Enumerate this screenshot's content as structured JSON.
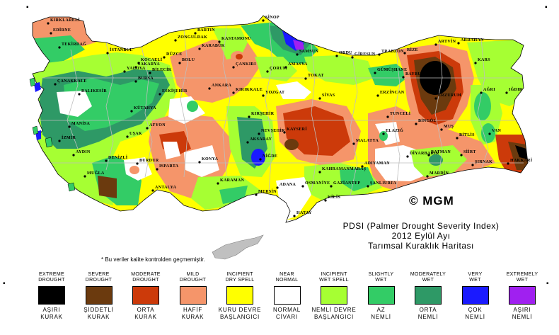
{
  "map": {
    "title_line1": "PDSI (Palmer Drought Severity Index)",
    "title_line2": "2012 Eylül Ayı",
    "title_line3": "Tarımsal Kuraklık Haritası",
    "copyright": "© MGM",
    "note": "* Bu veriler kalite kontrolden geçmemiştir.",
    "colors": {
      "extreme_drought": "#000000",
      "severe_drought": "#6b3a0e",
      "moderate_drought": "#cc3a0a",
      "mild_drought": "#f5956a",
      "incipient_dry_spell": "#ffff00",
      "near_normal": "#ffffff",
      "incipient_wet_spell": "#a6ff33",
      "slightly_wet": "#33cc66",
      "moderately_wet": "#2e9966",
      "very_wet": "#1a1aff",
      "extremely_wet": "#a020f0",
      "border": "#bebebe",
      "sea": "#ffffff",
      "cyprus": "#c0c0c0"
    },
    "cities": [
      {
        "name": "KIRKLARELİ"
      },
      {
        "name": "EDİRNE"
      },
      {
        "name": "TEKİRDAĞ"
      },
      {
        "name": "İSTANBUL"
      },
      {
        "name": "KOCAELİ"
      },
      {
        "name": "SAKARYA"
      },
      {
        "name": "DÜZCE"
      },
      {
        "name": "ZONGULDAK"
      },
      {
        "name": "BARTIN"
      },
      {
        "name": "KASTAMONU"
      },
      {
        "name": "SİNOP"
      },
      {
        "name": "SAMSUN"
      },
      {
        "name": "ORDU"
      },
      {
        "name": "GİRESUN"
      },
      {
        "name": "TRABZON"
      },
      {
        "name": "RİZE"
      },
      {
        "name": "ARTVİN"
      },
      {
        "name": "ARDAHAN"
      },
      {
        "name": "KARS"
      },
      {
        "name": "IĞDIR"
      },
      {
        "name": "AĞRI"
      },
      {
        "name": "ERZURUM"
      },
      {
        "name": "BAYBURT"
      },
      {
        "name": "GÜMÜŞHANE"
      },
      {
        "name": "ERZİNCAN"
      },
      {
        "name": "TUNCELİ"
      },
      {
        "name": "BİNGÖL"
      },
      {
        "name": "MUŞ"
      },
      {
        "name": "VAN"
      },
      {
        "name": "BİTLİS"
      },
      {
        "name": "SİİRT"
      },
      {
        "name": "HAKKARİ"
      },
      {
        "name": "ŞIRNAK"
      },
      {
        "name": "MARDİN"
      },
      {
        "name": "BATMAN"
      },
      {
        "name": "DİYARBAKIR"
      },
      {
        "name": "ELAZIĞ"
      },
      {
        "name": "MALATYA"
      },
      {
        "name": "ADIYAMAN"
      },
      {
        "name": "ŞANLIURFA"
      },
      {
        "name": "GAZİANTEP"
      },
      {
        "name": "KİLİS"
      },
      {
        "name": "HATAY"
      },
      {
        "name": "OSMANİYE"
      },
      {
        "name": "ADANA"
      },
      {
        "name": "MERSİN"
      },
      {
        "name": "KAHRAMANMARAŞ"
      },
      {
        "name": "KAYSERİ"
      },
      {
        "name": "SİVAS"
      },
      {
        "name": "TOKAT"
      },
      {
        "name": "AMASYA"
      },
      {
        "name": "ÇORUM"
      },
      {
        "name": "YOZGAT"
      },
      {
        "name": "KIRIKKALE"
      },
      {
        "name": "ANKARA"
      },
      {
        "name": "ÇANKIRI"
      },
      {
        "name": "KARABÜK"
      },
      {
        "name": "BOLU"
      },
      {
        "name": "BİLECİK"
      },
      {
        "name": "BURSA"
      },
      {
        "name": "YALOVA"
      },
      {
        "name": "ÇANAKKALE"
      },
      {
        "name": "BALIKESİR"
      },
      {
        "name": "İZMİR"
      },
      {
        "name": "MANİSA"
      },
      {
        "name": "AYDIN"
      },
      {
        "name": "MUĞLA"
      },
      {
        "name": "DENİZLİ"
      },
      {
        "name": "UŞAK"
      },
      {
        "name": "KÜTAHYA"
      },
      {
        "name": "ESKİŞEHİR"
      },
      {
        "name": "AFYON"
      },
      {
        "name": "BURDUR"
      },
      {
        "name": "ISPARTA"
      },
      {
        "name": "ANTALYA"
      },
      {
        "name": "KONYA"
      },
      {
        "name": "KARAMAN"
      },
      {
        "name": "AKSARAY"
      },
      {
        "name": "NİĞDE"
      },
      {
        "name": "NEVŞEHİR"
      },
      {
        "name": "KIRŞEHİR"
      }
    ]
  },
  "legend": [
    {
      "en": "EXTREME\nDROUGHT",
      "tr": "AŞIRI\nKURAK",
      "color": "#000000"
    },
    {
      "en": "SEVERE\nDROUGHT",
      "tr": "ŞİDDETLİ\nKURAK",
      "color": "#6b3a0e"
    },
    {
      "en": "MODERATE\nDROUGHT",
      "tr": "ORTA\nKURAK",
      "color": "#cc3a0a"
    },
    {
      "en": "MILD\nDROUGHT",
      "tr": "HAFİF\nKURAK",
      "color": "#f5956a"
    },
    {
      "en": "INCIPIENT\nDRY SPELL",
      "tr": "KURU DEVRE\nBAŞLANGICI",
      "color": "#ffff00"
    },
    {
      "en": "NEAR\nNORMAL",
      "tr": "NORMAL\nCİVARI",
      "color": "#ffffff"
    },
    {
      "en": "INCIPIENT\nWET SPELL",
      "tr": "NEMLİ DEVRE\nBAŞLANGICI",
      "color": "#a6ff33"
    },
    {
      "en": "SLIGHTLY\nWET",
      "tr": "AZ\nNEMLİ",
      "color": "#33cc66"
    },
    {
      "en": "MODERATELY\nWET",
      "tr": "ORTA\nNEMLİ",
      "color": "#2e9966"
    },
    {
      "en": "VERY\nWET",
      "tr": "ÇOK\nNEMLİ",
      "color": "#1a1aff"
    },
    {
      "en": "EXTREMELY\nWET",
      "tr": "AŞIRI\nNEMLİ",
      "color": "#a020f0"
    }
  ]
}
